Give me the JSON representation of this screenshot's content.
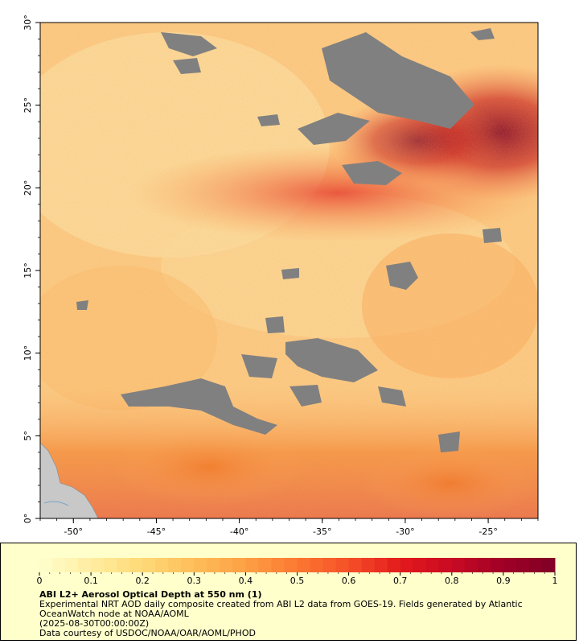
{
  "map": {
    "lat_ticks": [
      "30°",
      "25°",
      "20°",
      "15°",
      "10°",
      "5°",
      "0°"
    ],
    "lon_ticks": [
      "-50°",
      "-45°",
      "-40°",
      "-35°",
      "-30°",
      "-25°"
    ],
    "lat_range": [
      0,
      30
    ],
    "lon_range": [
      -52,
      -22
    ],
    "colors": {
      "no_data": "#808080",
      "land": "#c8c8c8",
      "low": "#fde9a9",
      "mid": "#f9a24d",
      "high": "#d7141f",
      "max": "#800026"
    }
  },
  "legend": {
    "ticks": [
      "0",
      "0.1",
      "0.2",
      "0.3",
      "0.4",
      "0.5",
      "0.6",
      "0.7",
      "0.8",
      "0.9",
      "1"
    ],
    "range": [
      0,
      1
    ],
    "title": "ABI L2+ Aerosol Optical Depth at 550 nm (1)",
    "line1": "Experimental NRT AOD daily composite created from ABI L2 data from GOES-19. Fields generated by Atlantic OceanWatch node at NOAA/AOML",
    "line2": "(2025-08-30T00:00:00Z)",
    "line3": "Data courtesy of USDOC/NOAA/OAR/AOML/PHOD"
  }
}
